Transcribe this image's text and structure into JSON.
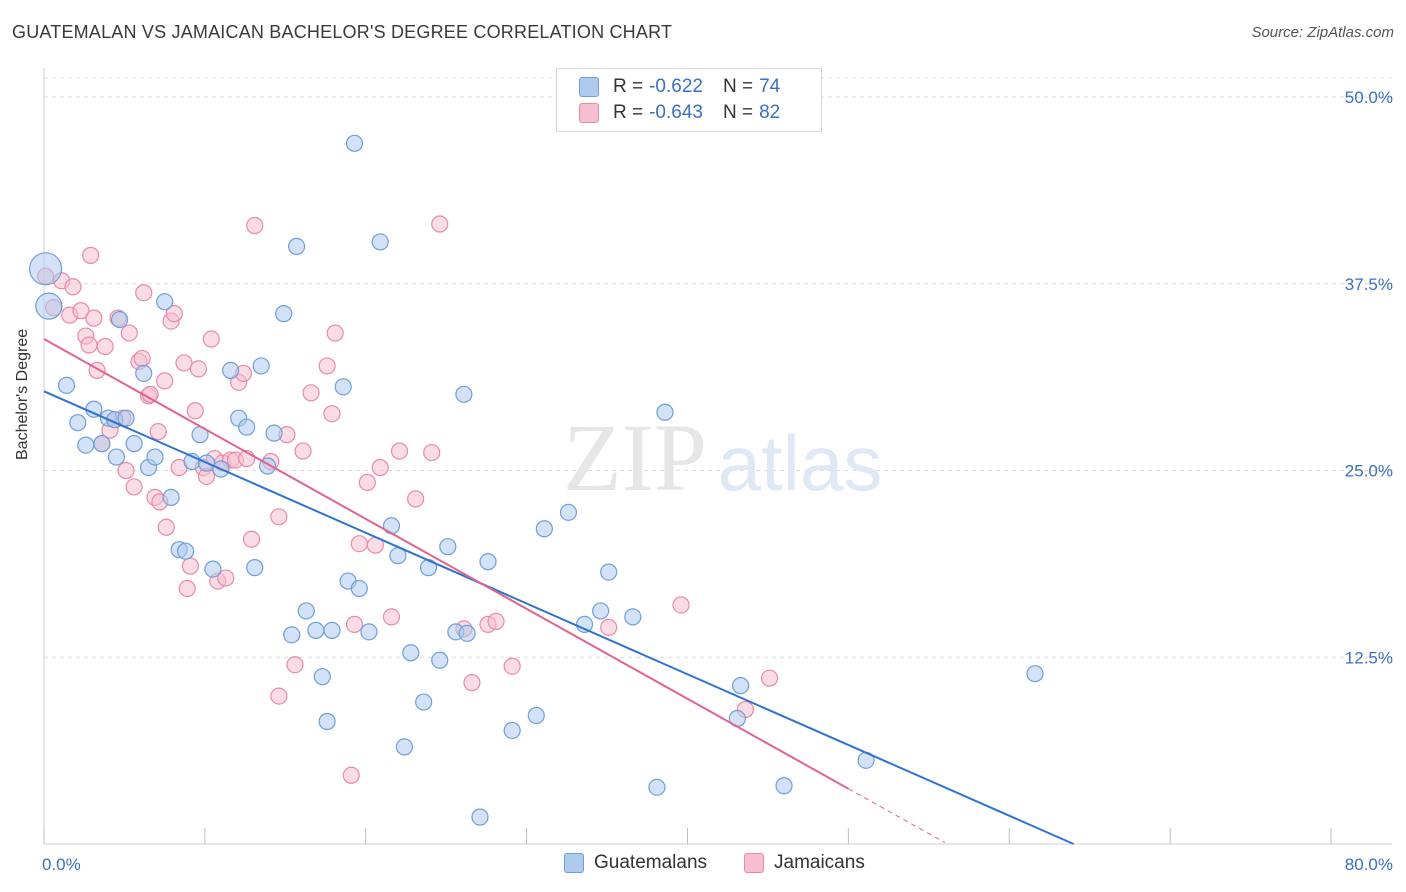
{
  "title": "GUATEMALAN VS JAMAICAN BACHELOR'S DEGREE CORRELATION CHART",
  "source": "Source: ZipAtlas.com",
  "watermark": {
    "zip": "ZIP",
    "atlas": "atlas"
  },
  "legend": {
    "rows": [
      {
        "r_label": "R =",
        "r_value": "-0.622",
        "n_label": "N =",
        "n_value": "74"
      },
      {
        "r_label": "R =",
        "r_value": "-0.643",
        "n_label": "N =",
        "n_value": "82"
      }
    ]
  },
  "bottom_legend": [
    "Guatemalans",
    "Jamaicans"
  ],
  "colors": {
    "blue_fill": "#aecbef",
    "blue_stroke": "#6f9fd8",
    "blue_line": "#2e73d0",
    "pink_fill": "#f6bfd0",
    "pink_stroke": "#e98aaa",
    "pink_line": "#e0648f",
    "tick_text": "#3b6fc4",
    "grid": "#dddddd"
  },
  "chart_data": {
    "type": "scatter",
    "title": "GUATEMALAN VS JAMAICAN BACHELOR'S DEGREE CORRELATION CHART",
    "xlabel": "",
    "ylabel": "Bachelor's Degree",
    "xlim": [
      0,
      80
    ],
    "ylim": [
      0,
      50
    ],
    "x_tick_labels": [
      "0.0%",
      "80.0%"
    ],
    "y_ticks": [
      12.5,
      25.0,
      37.5,
      50.0
    ],
    "y_tick_labels": [
      "12.5%",
      "25.0%",
      "37.5%",
      "50.0%"
    ],
    "grid": "horizontal dashed",
    "legend_position": "top-center",
    "series": [
      {
        "name": "Guatemalans",
        "trend": {
          "x": [
            0,
            64
          ],
          "y": [
            30.3,
            0
          ]
        },
        "points": [
          [
            0.1,
            38.5
          ],
          [
            0.3,
            36.0
          ],
          [
            1.4,
            30.7
          ],
          [
            2.1,
            28.2
          ],
          [
            2.6,
            26.7
          ],
          [
            3.1,
            29.1
          ],
          [
            3.6,
            26.8
          ],
          [
            4.0,
            28.5
          ],
          [
            4.4,
            28.4
          ],
          [
            4.5,
            25.9
          ],
          [
            4.7,
            35.1
          ],
          [
            5.1,
            28.5
          ],
          [
            5.6,
            26.8
          ],
          [
            6.2,
            31.5
          ],
          [
            6.5,
            25.2
          ],
          [
            6.9,
            25.9
          ],
          [
            7.5,
            36.3
          ],
          [
            7.9,
            23.2
          ],
          [
            8.4,
            19.7
          ],
          [
            8.8,
            19.6
          ],
          [
            9.2,
            25.6
          ],
          [
            9.7,
            27.4
          ],
          [
            10.1,
            25.5
          ],
          [
            10.5,
            18.4
          ],
          [
            11.0,
            25.1
          ],
          [
            11.6,
            31.7
          ],
          [
            12.1,
            28.5
          ],
          [
            12.6,
            27.9
          ],
          [
            13.1,
            18.5
          ],
          [
            13.5,
            32.0
          ],
          [
            13.9,
            25.3
          ],
          [
            14.3,
            27.5
          ],
          [
            14.9,
            35.5
          ],
          [
            15.4,
            14.0
          ],
          [
            15.7,
            40.0
          ],
          [
            16.3,
            15.6
          ],
          [
            16.9,
            14.3
          ],
          [
            17.3,
            11.2
          ],
          [
            17.6,
            8.2
          ],
          [
            17.9,
            14.3
          ],
          [
            18.6,
            30.6
          ],
          [
            18.9,
            17.6
          ],
          [
            19.3,
            46.9
          ],
          [
            19.6,
            17.1
          ],
          [
            20.2,
            14.2
          ],
          [
            20.9,
            40.3
          ],
          [
            21.6,
            21.3
          ],
          [
            22.0,
            19.3
          ],
          [
            22.4,
            6.5
          ],
          [
            22.8,
            12.8
          ],
          [
            23.6,
            9.5
          ],
          [
            23.9,
            18.5
          ],
          [
            24.6,
            12.3
          ],
          [
            25.1,
            19.9
          ],
          [
            25.6,
            14.2
          ],
          [
            26.1,
            30.1
          ],
          [
            26.3,
            14.1
          ],
          [
            27.1,
            1.8
          ],
          [
            27.6,
            18.9
          ],
          [
            29.1,
            7.6
          ],
          [
            30.6,
            8.6
          ],
          [
            31.1,
            21.1
          ],
          [
            32.6,
            22.2
          ],
          [
            33.6,
            14.7
          ],
          [
            34.6,
            15.6
          ],
          [
            35.1,
            18.2
          ],
          [
            36.6,
            15.2
          ],
          [
            38.1,
            3.8
          ],
          [
            38.6,
            28.9
          ],
          [
            43.1,
            8.4
          ],
          [
            43.3,
            10.6
          ],
          [
            46.0,
            3.9
          ],
          [
            51.1,
            5.6
          ],
          [
            61.6,
            11.4
          ]
        ]
      },
      {
        "name": "Jamaicans",
        "trend": {
          "x": [
            0,
            50
          ],
          "y": [
            33.8,
            3.7
          ]
        },
        "trend_dashed": {
          "x": [
            50,
            56
          ],
          "y": [
            3.7,
            0.1
          ]
        },
        "points": [
          [
            0.1,
            38.0
          ],
          [
            0.6,
            35.9
          ],
          [
            1.1,
            37.7
          ],
          [
            1.6,
            35.4
          ],
          [
            1.8,
            37.3
          ],
          [
            2.3,
            35.7
          ],
          [
            2.6,
            34.0
          ],
          [
            2.8,
            33.4
          ],
          [
            2.9,
            39.4
          ],
          [
            3.1,
            35.2
          ],
          [
            3.3,
            31.7
          ],
          [
            3.6,
            26.8
          ],
          [
            3.8,
            33.3
          ],
          [
            4.1,
            27.7
          ],
          [
            4.4,
            28.4
          ],
          [
            4.6,
            35.2
          ],
          [
            4.9,
            28.5
          ],
          [
            5.1,
            25.0
          ],
          [
            5.3,
            34.2
          ],
          [
            5.6,
            23.9
          ],
          [
            5.9,
            32.3
          ],
          [
            6.1,
            32.5
          ],
          [
            6.2,
            36.9
          ],
          [
            6.5,
            30.0
          ],
          [
            6.6,
            30.1
          ],
          [
            6.9,
            23.2
          ],
          [
            7.1,
            27.6
          ],
          [
            7.2,
            22.9
          ],
          [
            7.5,
            31.0
          ],
          [
            7.6,
            21.2
          ],
          [
            7.9,
            35.0
          ],
          [
            8.1,
            35.5
          ],
          [
            8.4,
            25.2
          ],
          [
            8.7,
            32.2
          ],
          [
            8.9,
            17.1
          ],
          [
            9.1,
            18.6
          ],
          [
            9.4,
            29.0
          ],
          [
            9.6,
            31.8
          ],
          [
            9.9,
            25.2
          ],
          [
            10.1,
            24.6
          ],
          [
            10.4,
            33.8
          ],
          [
            10.6,
            25.8
          ],
          [
            10.8,
            17.6
          ],
          [
            11.1,
            25.5
          ],
          [
            11.3,
            17.8
          ],
          [
            11.6,
            25.7
          ],
          [
            11.9,
            25.7
          ],
          [
            12.1,
            30.9
          ],
          [
            12.4,
            31.5
          ],
          [
            12.6,
            25.8
          ],
          [
            12.9,
            20.4
          ],
          [
            13.1,
            41.4
          ],
          [
            14.1,
            25.6
          ],
          [
            14.6,
            21.9
          ],
          [
            15.1,
            27.4
          ],
          [
            14.6,
            9.9
          ],
          [
            15.6,
            12.0
          ],
          [
            16.1,
            26.3
          ],
          [
            16.6,
            30.2
          ],
          [
            17.6,
            32.0
          ],
          [
            17.9,
            28.8
          ],
          [
            18.1,
            34.2
          ],
          [
            19.1,
            4.6
          ],
          [
            19.3,
            14.7
          ],
          [
            19.6,
            20.1
          ],
          [
            20.1,
            24.2
          ],
          [
            20.6,
            20.0
          ],
          [
            20.9,
            25.2
          ],
          [
            21.6,
            15.2
          ],
          [
            22.1,
            26.3
          ],
          [
            23.1,
            23.1
          ],
          [
            24.1,
            26.2
          ],
          [
            24.6,
            41.5
          ],
          [
            26.1,
            14.4
          ],
          [
            26.6,
            10.8
          ],
          [
            27.6,
            14.7
          ],
          [
            28.1,
            14.9
          ],
          [
            29.1,
            11.9
          ],
          [
            35.1,
            14.5
          ],
          [
            39.6,
            16.0
          ],
          [
            43.6,
            9.0
          ],
          [
            45.1,
            11.1
          ]
        ]
      }
    ]
  }
}
